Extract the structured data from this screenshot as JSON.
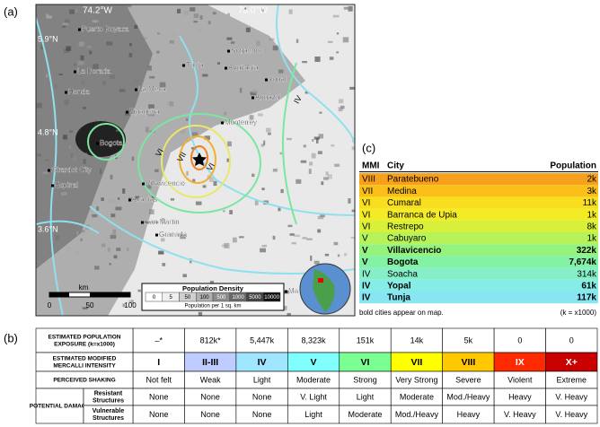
{
  "panels": {
    "a": "(a)",
    "b": "(b)",
    "c": "(c)"
  },
  "map": {
    "lon_labels": [
      "74.2°W",
      "73.0°W"
    ],
    "lat_labels": [
      "5.9°N",
      "4.8°N",
      "3.6°N"
    ],
    "cities": [
      "Puerto Boyaca",
      "La Dorada",
      "Honda",
      "La Mesa",
      "Zipaquira",
      "Tunja",
      "Sogamoso",
      "Aquitania",
      "Yopal",
      "Aguazul",
      "Monterrey",
      "Bogota",
      "Girardot City",
      "Espinal",
      "Villavicencio",
      "Acacias",
      "San Martin",
      "Granada",
      "Ma"
    ],
    "mmi_labels": [
      "IV",
      "VI",
      "VII",
      "VI"
    ],
    "scale": {
      "unit": "km",
      "ticks": [
        "0",
        "50",
        "100"
      ]
    },
    "legend": {
      "title": "Population Density",
      "classes": [
        "0",
        "5",
        "50",
        "100",
        "500",
        "1000",
        "5000",
        "10000"
      ],
      "colors": [
        "#ffffff",
        "#f0f0f0",
        "#d0d0d0",
        "#b0b0b0",
        "#8c8c8c",
        "#6a6a6a",
        "#444444",
        "#111111"
      ],
      "caption": "Population per 1 sq. km"
    }
  },
  "city_table": {
    "headers": [
      "MMI",
      "City",
      "Population"
    ],
    "rows": [
      {
        "mmi": "VIII",
        "city": "Paratebueno",
        "population": "2k",
        "bold": false,
        "color": "#f7a01c"
      },
      {
        "mmi": "VII",
        "city": "Medina",
        "population": "3k",
        "bold": false,
        "color": "#fbbf1a"
      },
      {
        "mmi": "VI",
        "city": "Cumaral",
        "population": "11k",
        "bold": false,
        "color": "#f8de1e"
      },
      {
        "mmi": "VI",
        "city": "Barranca de Upia",
        "population": "1k",
        "bold": false,
        "color": "#f3ec25"
      },
      {
        "mmi": "VI",
        "city": "Restrepo",
        "population": "8k",
        "bold": false,
        "color": "#d8f03a"
      },
      {
        "mmi": "V",
        "city": "Cabuyaro",
        "population": "1k",
        "bold": false,
        "color": "#b6f25a"
      },
      {
        "mmi": "V",
        "city": "Villavicencio",
        "population": "322k",
        "bold": true,
        "color": "#95f27c"
      },
      {
        "mmi": "V",
        "city": "Bogota",
        "population": "7,674k",
        "bold": true,
        "color": "#84f2a4"
      },
      {
        "mmi": "IV",
        "city": "Soacha",
        "population": "314k",
        "bold": false,
        "color": "#86efc8"
      },
      {
        "mmi": "IV",
        "city": "Yopal",
        "population": "61k",
        "bold": true,
        "color": "#86ece6"
      },
      {
        "mmi": "IV",
        "city": "Tunja",
        "population": "117k",
        "bold": true,
        "color": "#88e6f3"
      }
    ],
    "note": "bold cities appear on map.",
    "unit_note": "(k = x1000)"
  },
  "exposure_table": {
    "row_labels": {
      "exposure": "ESTIMATED POPULATION EXPOSURE (k=x1000)",
      "intensity": "ESTIMATED MODIFIED MERCALLI INTENSITY",
      "shaking": "PERCEIVED SHAKING",
      "damage": "POTENTIAL DAMAGE",
      "resistant": "Resistant Structures",
      "vulnerable": "Vulnerable Structures"
    },
    "exposure": [
      "–*",
      "812k*",
      "5,447k",
      "8,323k",
      "151k",
      "14k",
      "5k",
      "0",
      "0"
    ],
    "intensity": [
      "I",
      "II-III",
      "IV",
      "V",
      "VI",
      "VII",
      "VIII",
      "IX",
      "X+"
    ],
    "colors": [
      "#ffffff",
      "#bfccff",
      "#a0e6ff",
      "#80ffff",
      "#7aff93",
      "#ffff00",
      "#ffc800",
      "#ff2a00",
      "#c80000"
    ],
    "shaking": [
      "Not felt",
      "Weak",
      "Light",
      "Moderate",
      "Strong",
      "Very Strong",
      "Severe",
      "Violent",
      "Extreme"
    ],
    "resistant": [
      "None",
      "None",
      "None",
      "V. Light",
      "Light",
      "Moderate",
      "Mod./Heavy",
      "Heavy",
      "V. Heavy"
    ],
    "vulnerable": [
      "None",
      "None",
      "None",
      "Light",
      "Moderate",
      "Mod./Heavy",
      "Heavy",
      "V. Heavy",
      "V. Heavy"
    ]
  }
}
